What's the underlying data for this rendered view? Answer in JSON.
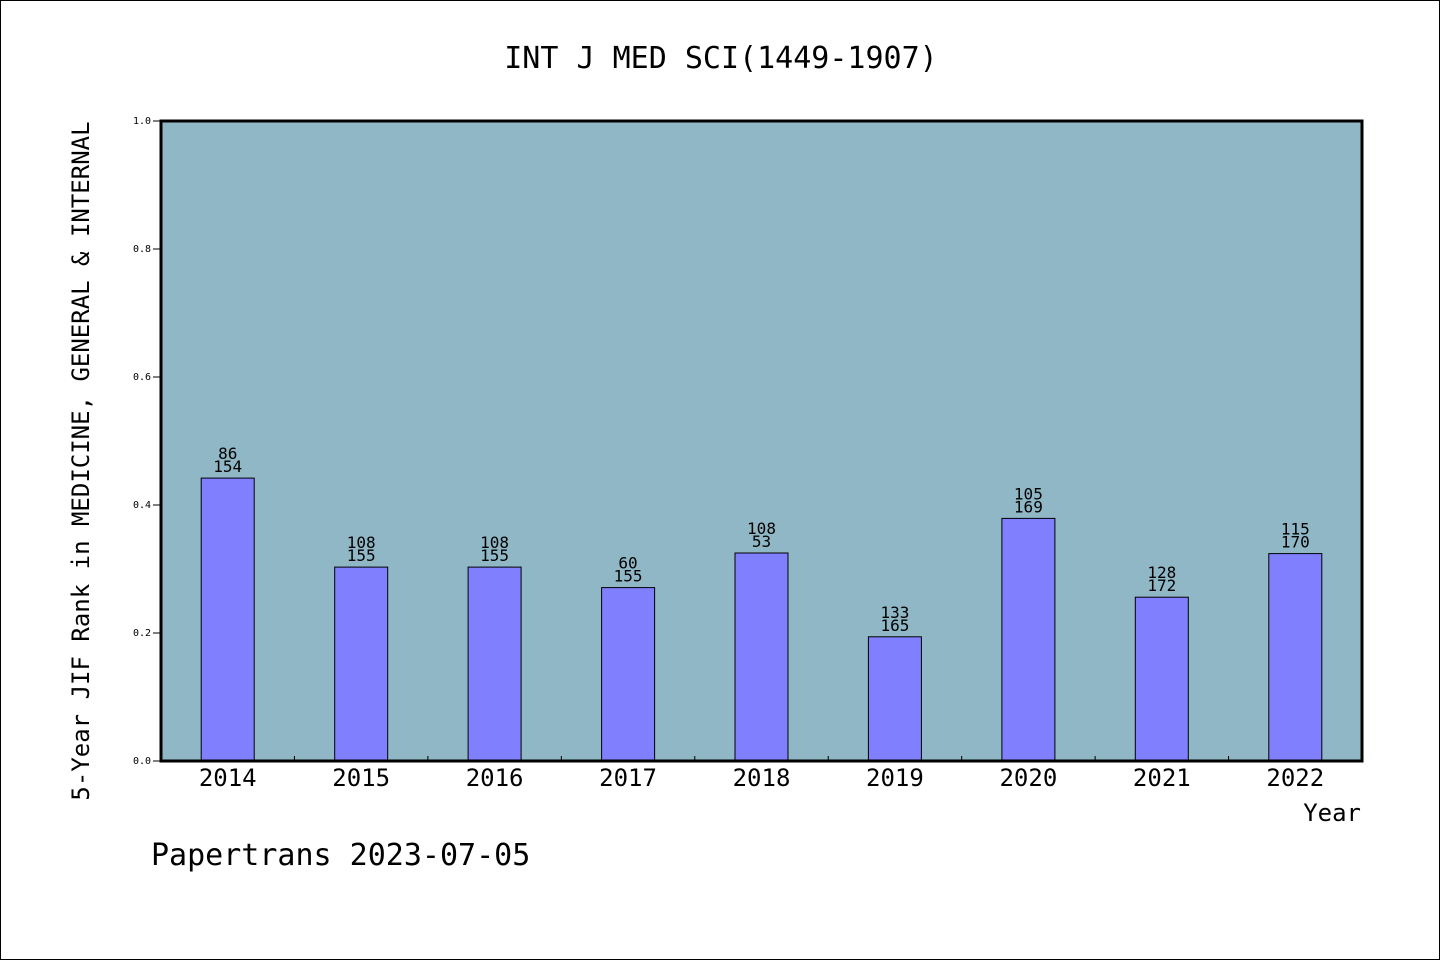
{
  "chart_data": {
    "type": "bar",
    "title": "INT J MED SCI(1449-1907)",
    "xlabel": "Year",
    "ylabel": "5-Year JIF Rank in MEDICINE, GENERAL & INTERNAL",
    "categories": [
      "2014",
      "2015",
      "2016",
      "2017",
      "2018",
      "2019",
      "2020",
      "2021",
      "2022"
    ],
    "values": [
      0.442,
      0.303,
      0.303,
      0.271,
      0.325,
      0.194,
      0.379,
      0.256,
      0.324
    ],
    "rank_labels": [
      {
        "rank": "86",
        "total": "154"
      },
      {
        "rank": "108",
        "total": "155"
      },
      {
        "rank": "108",
        "total": "155"
      },
      {
        "rank": "60",
        "total": "155"
      },
      {
        "rank": "108",
        "total": "53"
      },
      {
        "rank": "133",
        "total": "165"
      },
      {
        "rank": "105",
        "total": "169"
      },
      {
        "rank": "128",
        "total": "172"
      },
      {
        "rank": "115",
        "total": "170"
      }
    ],
    "ylim": [
      0,
      1.0
    ],
    "yticks": [
      "0.0",
      "0.2",
      "0.4",
      "0.6",
      "0.8",
      "1.0"
    ],
    "grid": false,
    "colors": {
      "plot_background": "#8fb7c5",
      "bar_fill": "#8080ff",
      "bar_edge": "#000000"
    }
  },
  "footer": "Papertrans 2023-07-05"
}
